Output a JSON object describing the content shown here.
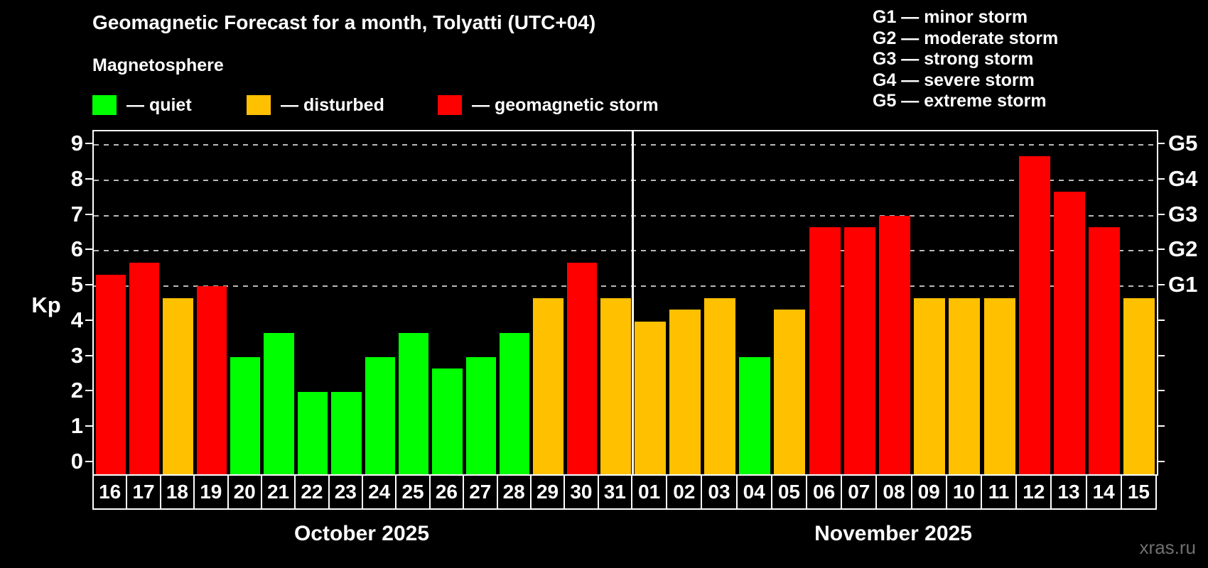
{
  "title": "Geomagnetic Forecast for a month, Tolyatti (UTC+04)",
  "legend": {
    "heading": "Magnetosphere",
    "items": [
      {
        "label": "— quiet",
        "color": "#00ff00"
      },
      {
        "label": "— disturbed",
        "color": "#ffc000"
      },
      {
        "label": "— geomagnetic storm",
        "color": "#ff0000"
      }
    ]
  },
  "storm_scale_legend": [
    "G1 — minor storm",
    "G2 — moderate storm",
    "G3 — strong storm",
    "G4 — severe storm",
    "G5 — extreme storm"
  ],
  "watermark": "xras.ru",
  "chart_data": {
    "type": "bar",
    "title": "Geomagnetic Forecast for a month, Tolyatti (UTC+04)",
    "ylabel": "Kp",
    "ylim": [
      0,
      9
    ],
    "yticks": [
      0,
      1,
      2,
      3,
      4,
      5,
      6,
      7,
      8,
      9
    ],
    "gridlines_at_kp": [
      5,
      6,
      7,
      8,
      9
    ],
    "grid": "dashed horizontal lines at Kp 5-9 only",
    "legend_position": "top",
    "right_axis": [
      {
        "label": "G1",
        "kp": 5
      },
      {
        "label": "G2",
        "kp": 6
      },
      {
        "label": "G3",
        "kp": 7
      },
      {
        "label": "G4",
        "kp": 8
      },
      {
        "label": "G5",
        "kp": 9
      }
    ],
    "color_map": {
      "quiet": "#00ff00",
      "disturbed": "#ffc000",
      "storm": "#ff0000"
    },
    "months": [
      {
        "label": "October 2025",
        "days": [
          "16",
          "17",
          "18",
          "19",
          "20",
          "21",
          "22",
          "23",
          "24",
          "25",
          "26",
          "27",
          "28",
          "29",
          "30",
          "31"
        ],
        "values": [
          5.33,
          5.67,
          4.67,
          5.0,
          3.0,
          3.67,
          2.0,
          2.0,
          3.0,
          3.67,
          2.67,
          3.0,
          3.67,
          4.67,
          5.67,
          4.67
        ],
        "levels": [
          "storm",
          "storm",
          "disturbed",
          "storm",
          "quiet",
          "quiet",
          "quiet",
          "quiet",
          "quiet",
          "quiet",
          "quiet",
          "quiet",
          "quiet",
          "disturbed",
          "storm",
          "disturbed"
        ]
      },
      {
        "label": "November 2025",
        "days": [
          "01",
          "02",
          "03",
          "04",
          "05",
          "06",
          "07",
          "08",
          "09",
          "10",
          "11",
          "12",
          "13",
          "14",
          "15"
        ],
        "values": [
          4.0,
          4.33,
          4.67,
          3.0,
          4.33,
          6.67,
          6.67,
          7.0,
          4.67,
          4.67,
          4.67,
          8.67,
          7.67,
          6.67,
          4.67
        ],
        "levels": [
          "disturbed",
          "disturbed",
          "disturbed",
          "quiet",
          "disturbed",
          "storm",
          "storm",
          "storm",
          "disturbed",
          "disturbed",
          "disturbed",
          "storm",
          "storm",
          "storm",
          "disturbed"
        ]
      }
    ]
  }
}
